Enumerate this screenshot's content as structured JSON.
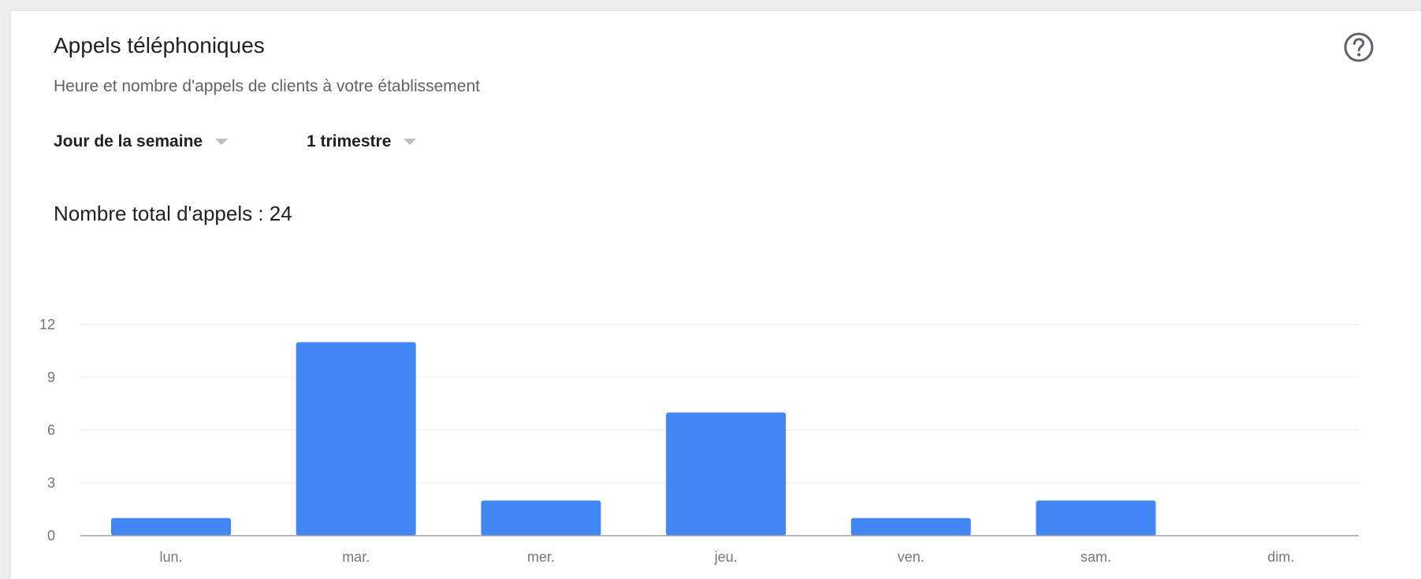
{
  "card": {
    "title": "Appels téléphoniques",
    "subtitle": "Heure et nombre d'appels de clients à votre établissement",
    "help_icon": "help-circle-icon"
  },
  "filters": {
    "period_label": "Jour de la semaine",
    "range_label": "1 trimestre"
  },
  "summary": {
    "total_label": "Nombre total d'appels : 24"
  },
  "colors": {
    "bar": "#4285f4"
  },
  "chart_data": {
    "type": "bar",
    "categories": [
      "lun.",
      "mar.",
      "mer.",
      "jeu.",
      "ven.",
      "sam.",
      "dim."
    ],
    "values": [
      1,
      11,
      2,
      7,
      1,
      2,
      0
    ],
    "yticks": [
      0,
      3,
      6,
      9,
      12
    ],
    "ylim": [
      0,
      12
    ],
    "grid": true,
    "legend": "none"
  }
}
